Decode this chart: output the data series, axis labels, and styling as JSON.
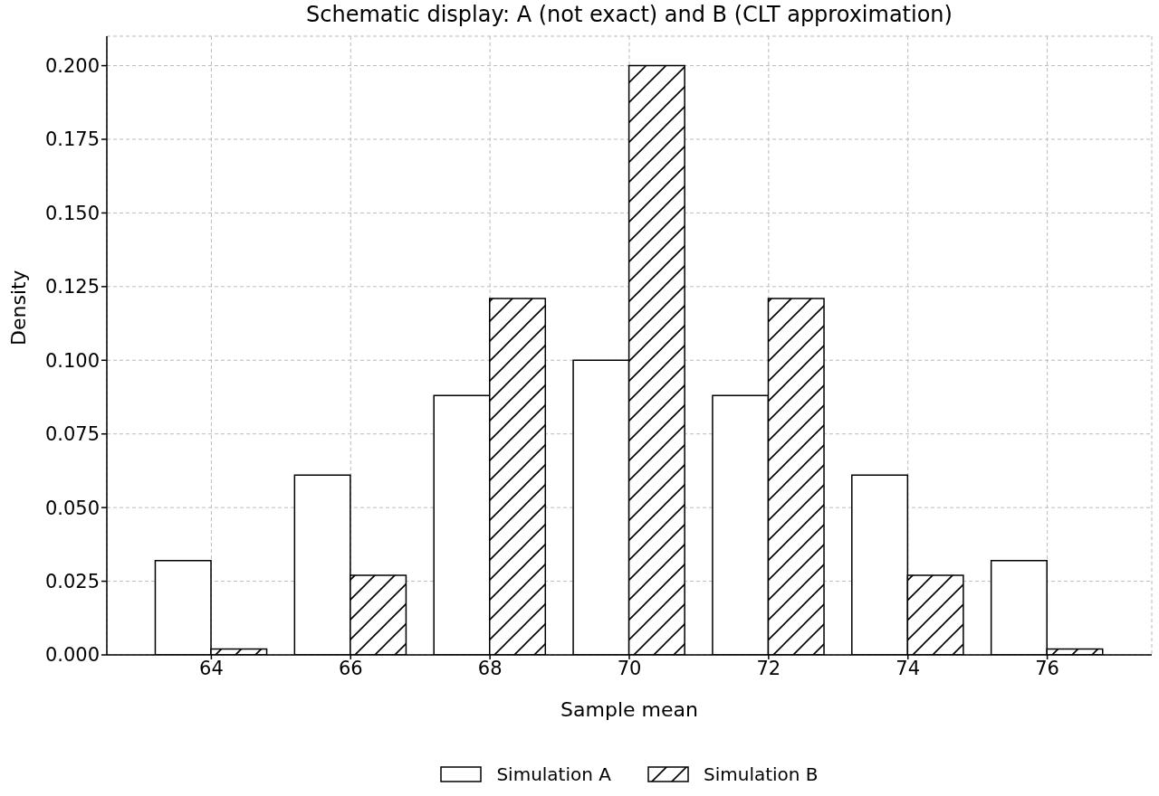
{
  "chart_data": {
    "type": "bar",
    "title": "Schematic display: A (not exact) and B (CLT approximation)",
    "xlabel": "Sample mean",
    "ylabel": "Density",
    "x": [
      64,
      66,
      68,
      70,
      72,
      74,
      76
    ],
    "series": [
      {
        "name": "Simulation A",
        "color": "#ffffff",
        "values": [
          0.032,
          0.061,
          0.088,
          0.1,
          0.088,
          0.061,
          0.032
        ]
      },
      {
        "name": "Simulation B",
        "color": "#000000",
        "values": [
          0.002,
          0.027,
          0.121,
          0.2,
          0.121,
          0.027,
          0.002
        ]
      }
    ],
    "xlim": [
      62.5,
      77.5
    ],
    "xticks": [
      64,
      66,
      68,
      70,
      72,
      74,
      76
    ],
    "ylim": [
      0,
      0.21
    ],
    "yticks": [
      {
        "value": 0,
        "label": "0.000"
      },
      0.025,
      {
        "value": 0.05,
        "label": "0.050"
      },
      0.075,
      {
        "value": 0.1,
        "label": "0.100"
      },
      0.125,
      {
        "value": 0.15,
        "label": "0.150"
      },
      0.175,
      {
        "value": 0.2,
        "label": "0.200"
      }
    ],
    "grid": true,
    "legend": "bottom"
  }
}
